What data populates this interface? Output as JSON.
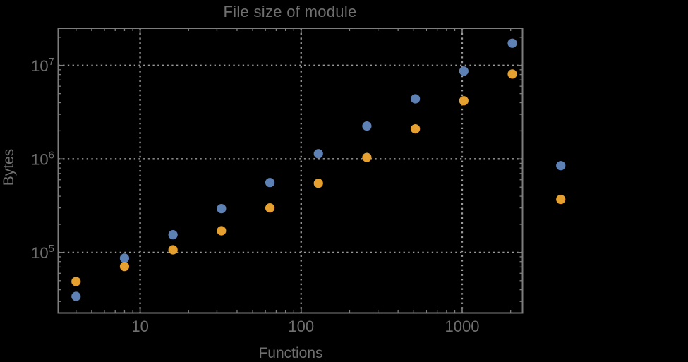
{
  "window": {
    "background_color": "#000000"
  },
  "chart_data": {
    "type": "scatter",
    "title": "File size of module",
    "xlabel": "Functions",
    "ylabel": "Bytes",
    "x_scale": "log",
    "y_scale": "log",
    "xlim": [
      3.1,
      2370
    ],
    "ylim": [
      22600,
      25000000
    ],
    "grid": "dotted, at powers of ten",
    "legend": "none",
    "x_gridlines": [
      10,
      100,
      1000
    ],
    "y_gridlines": [
      100000,
      1000000,
      10000000
    ],
    "x_tick_labels": [
      {
        "value": 10,
        "label": "10"
      },
      {
        "value": 100,
        "label": "100"
      },
      {
        "value": 1000,
        "label": "1000"
      }
    ],
    "y_tick_labels": [
      {
        "value": 100000,
        "base": "10",
        "exp": "5"
      },
      {
        "value": 1000000,
        "base": "10",
        "exp": "6"
      },
      {
        "value": 10000000,
        "base": "10",
        "exp": "7"
      }
    ],
    "x": [
      4,
      8,
      16,
      32,
      64,
      128,
      256,
      512,
      1024,
      2048,
      4096
    ],
    "series": [
      {
        "name": "series-1-blue",
        "color": "#5e81b5",
        "values": [
          34000,
          87000,
          155000,
          295000,
          560000,
          1140000,
          2250000,
          4400000,
          8700000,
          17300000,
          850000
        ]
      },
      {
        "name": "series-2-orange",
        "color": "#e5a02f",
        "values": [
          49000,
          71000,
          107000,
          171000,
          300000,
          550000,
          1040000,
          2100000,
          4200000,
          8100000,
          370000
        ]
      }
    ],
    "note": "points at x=4096 are drawn outside the right edge of the plot frame (plot range clipping off)"
  },
  "style": {
    "frame_color": "#7d7d7d",
    "grid_color": "#9c9c9c",
    "tick_color": "#7d7d7d",
    "text_color": "#6f6f6f",
    "point_radius": 6.6
  }
}
